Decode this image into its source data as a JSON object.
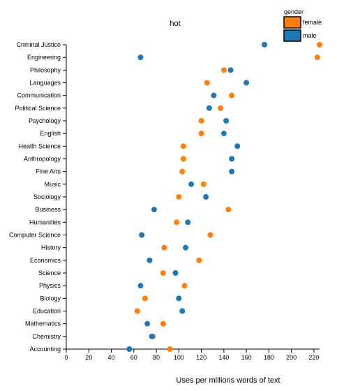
{
  "chart_data": {
    "type": "scatter",
    "title": "hot",
    "xlabel": "Uses per millions words of text",
    "ylabel": "",
    "xlim": [
      0,
      225
    ],
    "xticks": [
      0,
      20,
      40,
      60,
      80,
      100,
      120,
      140,
      160,
      180,
      200,
      220
    ],
    "grid": false,
    "legend": {
      "title": "gender",
      "placement": "top-right"
    },
    "categories": [
      "Criminal Justice",
      "Engineering",
      "Philosophy",
      "Languages",
      "Communication",
      "Political Science",
      "Psychology",
      "English",
      "Health Science",
      "Anthropology",
      "Fine Arts",
      "Music",
      "Sociology",
      "Business",
      "Humanities",
      "Computer Science",
      "History",
      "Economics",
      "Science",
      "Physics",
      "Biology",
      "Education",
      "Mathematics",
      "Chemistry",
      "Accounting"
    ],
    "series": [
      {
        "name": "female",
        "color": "#ff7f0e",
        "values": [
          225,
          223,
          140,
          125,
          147,
          137,
          120,
          120,
          104,
          104,
          103,
          122,
          100,
          144,
          98,
          128,
          87,
          118,
          86,
          105,
          70,
          63,
          86,
          77,
          92
        ]
      },
      {
        "name": "male",
        "color": "#1f77b4",
        "values": [
          176,
          66,
          146,
          160,
          131,
          127,
          142,
          140,
          152,
          147,
          147,
          111,
          124,
          78,
          108,
          67,
          106,
          74,
          97,
          66,
          100,
          103,
          72,
          76,
          56
        ]
      }
    ]
  }
}
